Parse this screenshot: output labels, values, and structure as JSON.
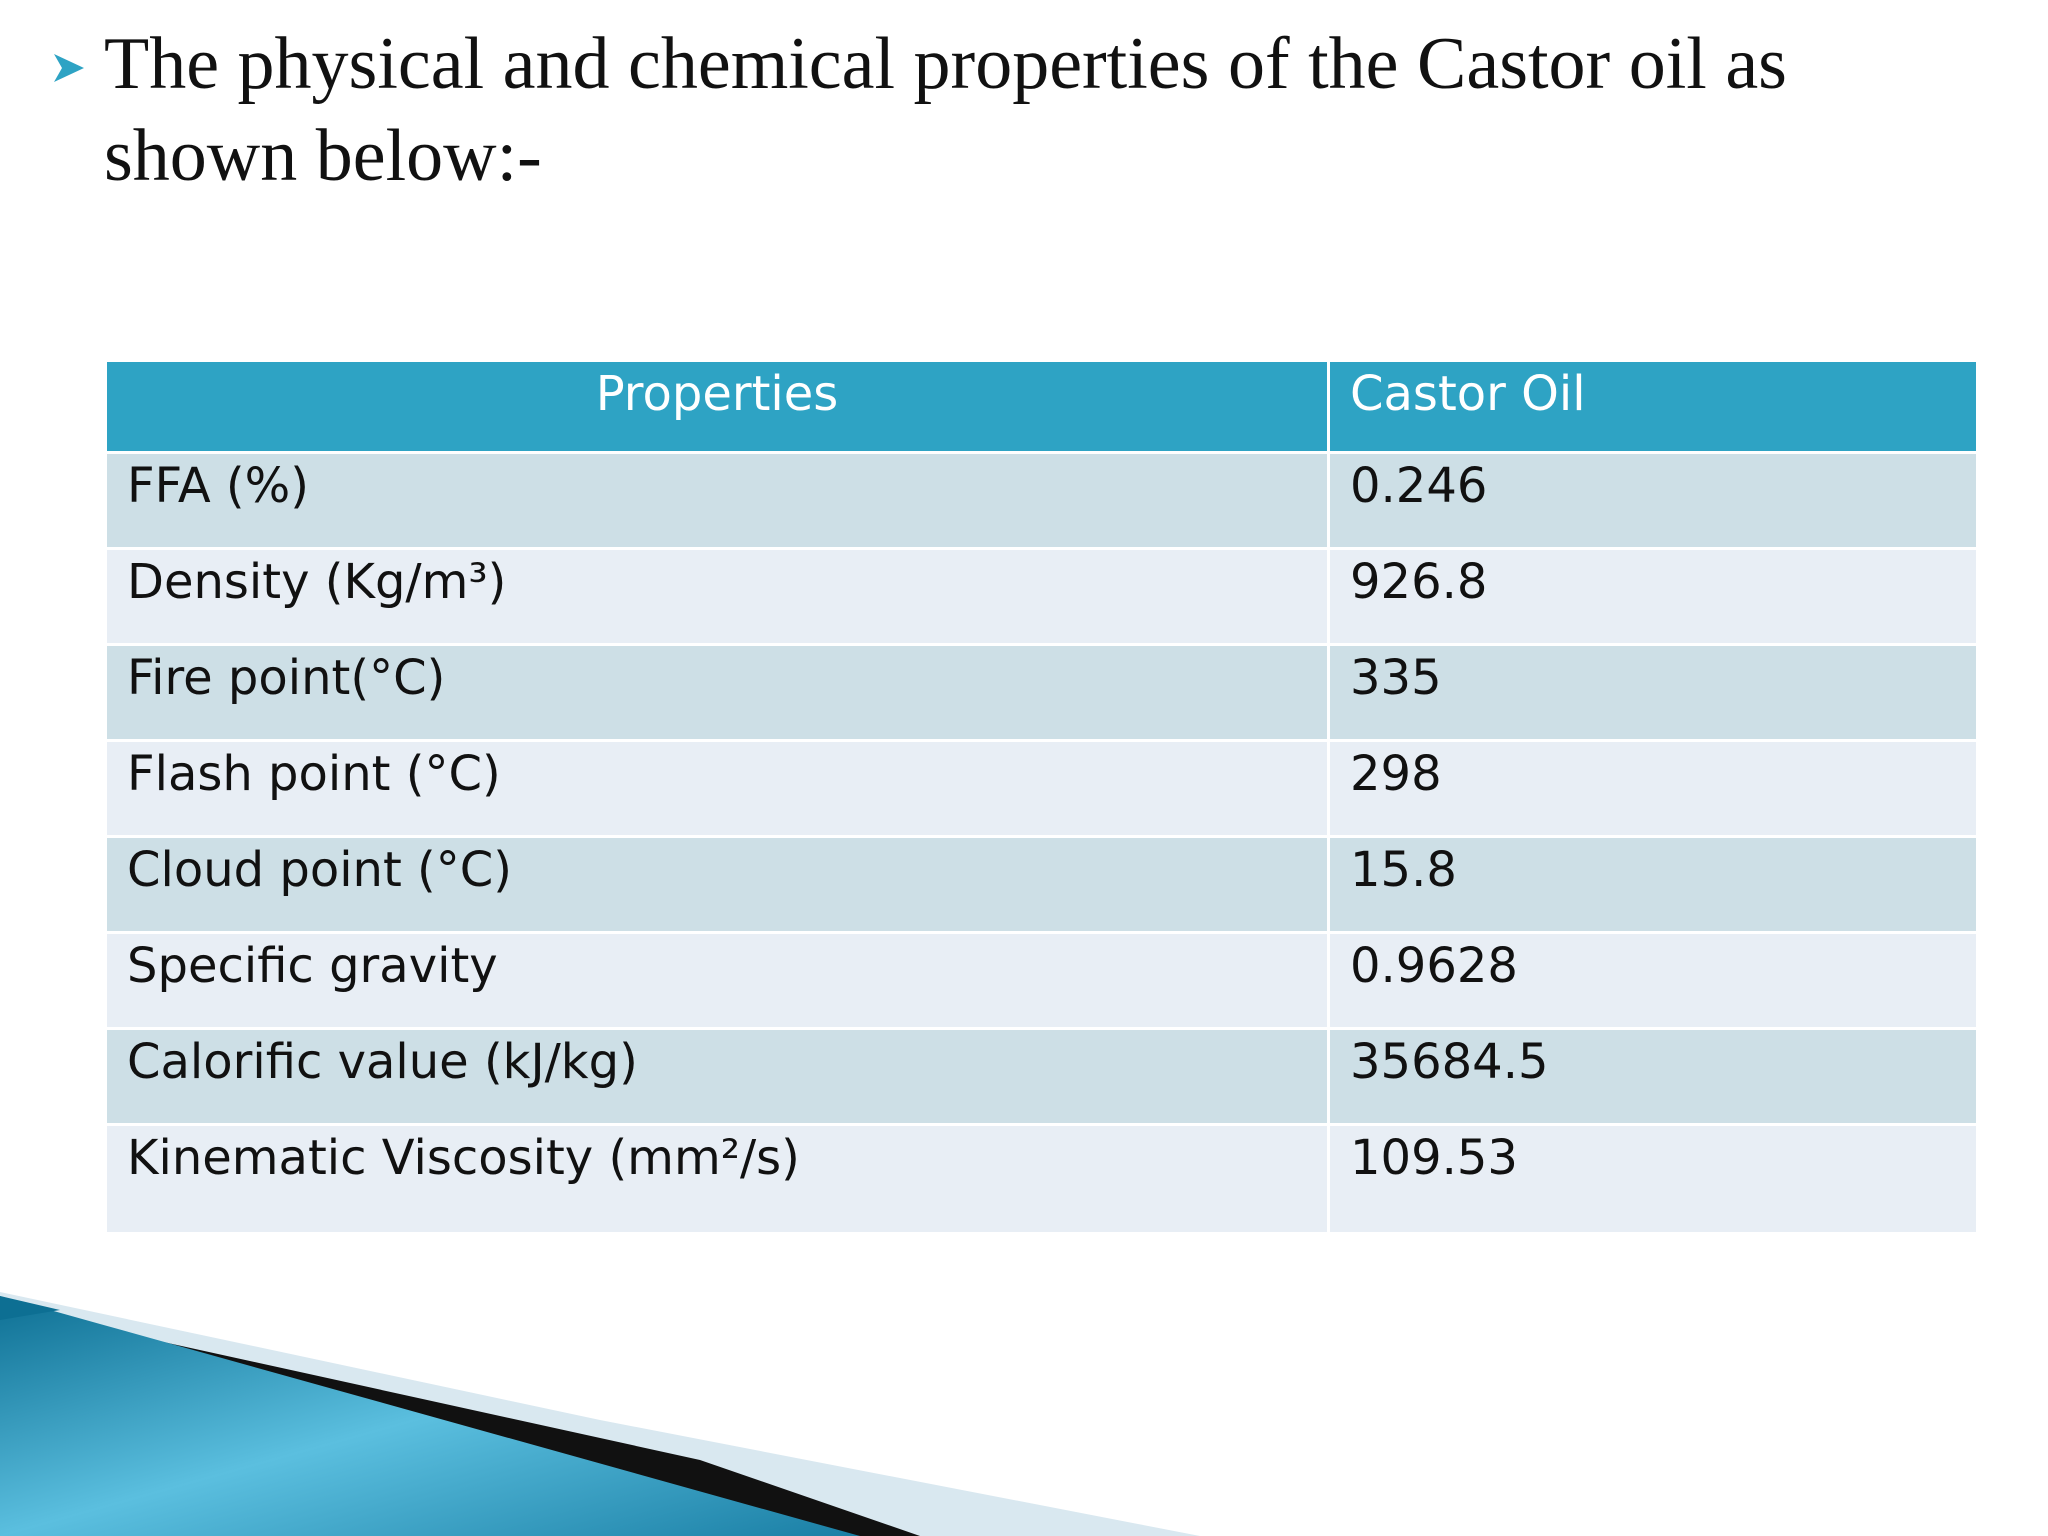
{
  "header": {
    "title": "The physical and chemical properties of the Castor oil as shown below:-"
  },
  "table": {
    "columns": [
      "Properties",
      "Castor Oil"
    ],
    "rows": [
      [
        "FFA (%)",
        "0.246"
      ],
      [
        "Density (Kg/m³)",
        "926.8"
      ],
      [
        "Fire point(°C)",
        "335"
      ],
      [
        "Flash point (°C)",
        "298"
      ],
      [
        "Cloud point (°C)",
        "15.8"
      ],
      [
        "Specific gravity",
        "0.9628"
      ],
      [
        "Calorific value (kJ/kg)",
        "35684.5"
      ],
      [
        "Kinematic Viscosity (mm²/s)",
        "109.53"
      ]
    ]
  }
}
